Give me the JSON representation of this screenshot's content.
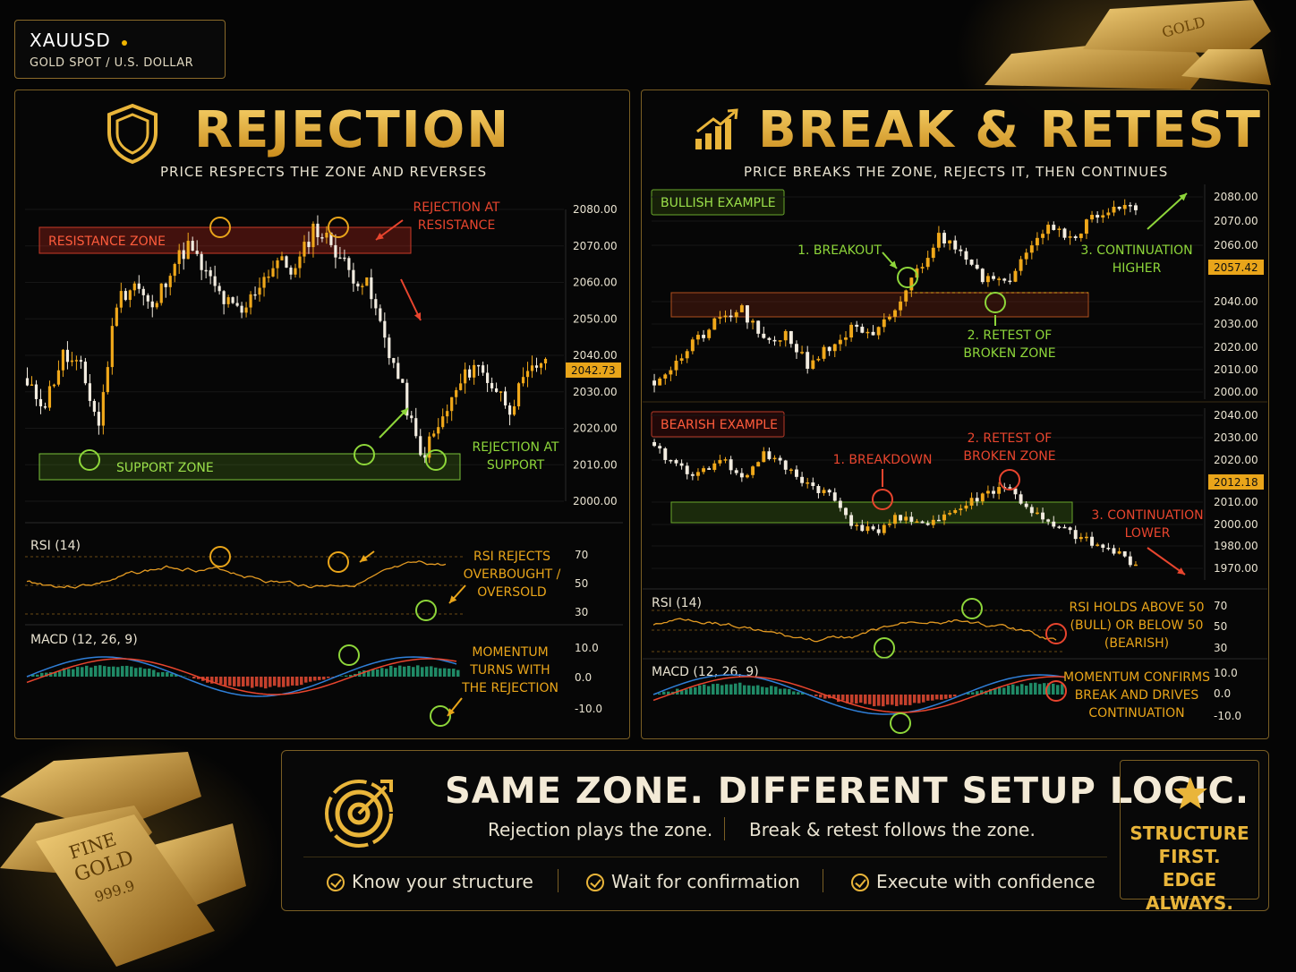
{
  "ticker": {
    "symbol": "XAUUSD",
    "pair": "GOLD SPOT / U.S. DOLLAR"
  },
  "colors": {
    "gold": "#e9b53a",
    "bull": "#f0a81a",
    "bear": "#f2ece0",
    "red": "#e8452e",
    "green": "#8ed63a",
    "rsi": "#e39a22",
    "macd_blue": "#2f7fd8",
    "macd_red": "#e8452e"
  },
  "left": {
    "title": "REJECTION",
    "subtitle": "PRICE RESPECTS THE ZONE AND REVERSES",
    "resistance_label": "RESISTANCE ZONE",
    "support_label": "SUPPORT ZONE",
    "ann_resistance": [
      "REJECTION AT",
      "RESISTANCE"
    ],
    "ann_support": [
      "REJECTION AT",
      "SUPPORT"
    ],
    "rsi_title": "RSI (14)",
    "rsi_note": [
      "RSI REJECTS",
      "OVERBOUGHT /",
      "OVERSOLD"
    ],
    "macd_title": "MACD (12, 26, 9)",
    "macd_note": [
      "MOMENTUM",
      "TURNS WITH",
      "THE REJECTION"
    ]
  },
  "right": {
    "title": "BREAK & RETEST",
    "subtitle": "PRICE BREAKS THE ZONE, REJECTS IT, THEN CONTINUES",
    "bull_tag": "BULLISH EXAMPLE",
    "bull_ann": {
      "breakout": "1. BREAKOUT",
      "retest": [
        "2. RETEST OF",
        "BROKEN ZONE"
      ],
      "cont": [
        "3. CONTINUATION",
        "HIGHER"
      ]
    },
    "bear_tag": "BEARISH EXAMPLE",
    "bear_ann": {
      "breakdown": "1. BREAKDOWN",
      "retest": [
        "2. RETEST OF",
        "BROKEN ZONE"
      ],
      "cont": [
        "3. CONTINUATION",
        "LOWER"
      ]
    },
    "rsi_title": "RSI (14)",
    "rsi_note": [
      "RSI HOLDS ABOVE 50",
      "(BULL) OR BELOW 50",
      "(BEARISH)"
    ],
    "macd_title": "MACD (12, 26, 9)",
    "macd_note": [
      "MOMENTUM CONFIRMS",
      "BREAK AND DRIVES",
      "CONTINUATION"
    ]
  },
  "chart_data": [
    {
      "type": "candlestick",
      "name": "rejection",
      "yticks": [
        "2080.00",
        "2070.00",
        "2060.00",
        "2050.00",
        "2040.00",
        "2030.00",
        "2020.00",
        "2010.00",
        "2000.00"
      ],
      "ylim": [
        2000,
        2080
      ],
      "current_price": "2042.73",
      "resistance_zone": [
        2067,
        2074
      ],
      "support_zone": [
        2007,
        2014
      ],
      "path": [
        2031,
        2027,
        2040,
        2036,
        2021,
        2055,
        2060,
        2052,
        2064,
        2070,
        2062,
        2055,
        2051,
        2060,
        2066,
        2063,
        2075,
        2071,
        2063,
        2059,
        2045,
        2030,
        2012,
        2020,
        2030,
        2038,
        2032,
        2026,
        2034,
        2040
      ]
    },
    {
      "type": "candlestick",
      "name": "bullish-break-retest",
      "yticks": [
        "2080.00",
        "2070.00",
        "2060.00",
        "2040.00",
        "2030.00",
        "2020.00",
        "2010.00",
        "2000.00"
      ],
      "ylim": [
        2000,
        2080
      ],
      "current_price": "2057.42",
      "zone": [
        2036,
        2046
      ],
      "path": [
        2005,
        2012,
        2022,
        2030,
        2034,
        2020,
        2024,
        2012,
        2018,
        2026,
        2022,
        2034,
        2050,
        2064,
        2060,
        2048,
        2044,
        2060,
        2070,
        2064,
        2072,
        2077,
        2075
      ]
    },
    {
      "type": "candlestick",
      "name": "bearish-break-retest",
      "yticks": [
        "2040.00",
        "2030.00",
        "2020.00",
        "2010.00",
        "2000.00",
        "1980.00",
        "1970.00"
      ],
      "ylim": [
        1965,
        2045
      ],
      "current_price": "2012.18",
      "zone": [
        1998,
        2007
      ],
      "path": [
        2030,
        2022,
        2016,
        2026,
        2014,
        2028,
        2020,
        2012,
        2006,
        1992,
        1986,
        1994,
        1990,
        1994,
        1999,
        2006,
        2011,
        2000,
        1990,
        1986,
        1980,
        1976,
        1970
      ]
    },
    {
      "type": "line",
      "name": "rsi-left",
      "yticks": [
        "70",
        "50",
        "30"
      ]
    },
    {
      "type": "histogram",
      "name": "macd-left",
      "yticks": [
        "10.0",
        "0.0",
        "-10.0"
      ]
    },
    {
      "type": "line",
      "name": "rsi-right",
      "yticks": [
        "70",
        "50",
        "30"
      ]
    },
    {
      "type": "histogram",
      "name": "macd-right",
      "yticks": [
        "10.0",
        "0.0",
        "-10.0"
      ]
    }
  ],
  "bottom": {
    "slogan": "SAME ZONE. DIFFERENT SETUP LOGIC.",
    "line_left": "Rejection plays the zone.",
    "line_right": "Break & retest follows the zone.",
    "checks": [
      "Know your structure",
      "Wait for confirmation",
      "Execute with confidence"
    ],
    "badge": [
      "STRUCTURE",
      "FIRST.",
      "EDGE ALWAYS."
    ]
  },
  "gold_bar": {
    "line1": "FINE",
    "line2": "GOLD",
    "line3": "999.9"
  }
}
